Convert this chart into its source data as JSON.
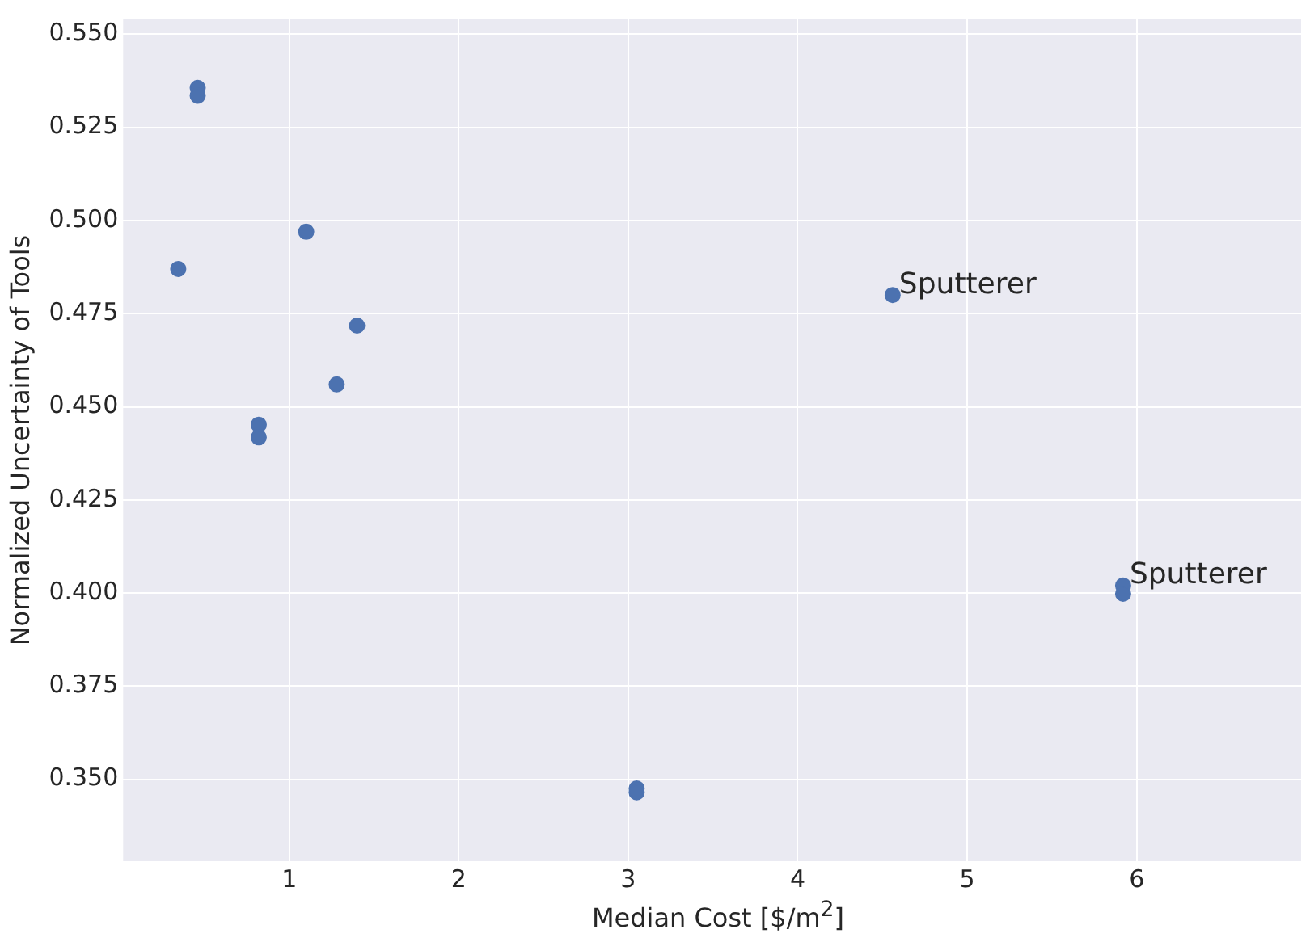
{
  "chart_data": {
    "type": "scatter",
    "xlabel": "Median Cost [$/m$^{2}$]",
    "ylabel": "Normalized Uncertainty of Tools",
    "x": [
      0.46,
      0.46,
      0.345,
      1.1,
      1.4,
      0.82,
      0.82,
      1.28,
      4.56,
      5.92,
      5.92,
      3.05,
      3.05
    ],
    "series": [
      {
        "color": "#4c72b0",
        "values": [
          0.5356,
          0.5335,
          0.487,
          0.497,
          0.4718,
          0.4452,
          0.4418,
          0.456,
          0.48,
          0.402,
          0.3998,
          0.3475,
          0.3465
        ]
      }
    ],
    "xlim": [
      0.02,
      6.97
    ],
    "xticks": [
      1,
      2,
      3,
      4,
      5,
      6
    ],
    "ylim": [
      0.328,
      0.554
    ],
    "yticks": [
      {
        "value": 0.35,
        "label": "0.350"
      },
      {
        "value": 0.375,
        "label": "0.375"
      },
      {
        "value": 0.4,
        "label": "0.400"
      },
      {
        "value": 0.425,
        "label": "0.425"
      },
      {
        "value": 0.45,
        "label": "0.450"
      },
      {
        "value": 0.475,
        "label": "0.475"
      },
      {
        "value": 0.5,
        "label": "0.500"
      },
      {
        "value": 0.525,
        "label": "0.525"
      },
      {
        "value": 0.55,
        "label": "0.550"
      }
    ],
    "annotations": [
      {
        "text": "Sputterer",
        "x": 4.56,
        "y": 0.48
      },
      {
        "text": "Sputterer",
        "x": 5.92,
        "y": 0.402
      }
    ],
    "grid": true,
    "legend": false,
    "marker": "circle"
  }
}
